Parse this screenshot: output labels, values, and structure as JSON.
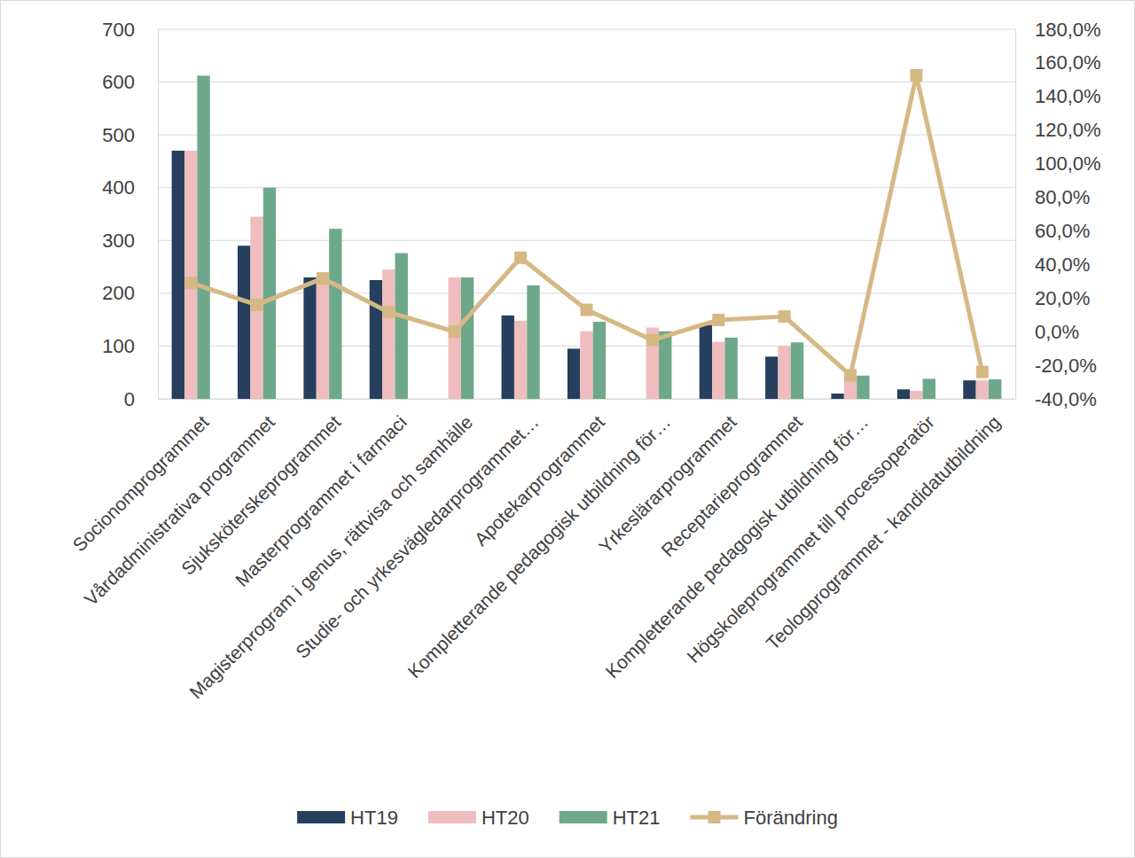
{
  "chart_data": {
    "type": "bar",
    "categories": [
      "Socionomprogrammet",
      "Vårdadministrativa programmet",
      "Sjuksköterskeprogrammet",
      "Masterprogrammet i farmaci",
      "Magisterprogram i genus, rättvisa och samhälle",
      "Studie- och yrkesvägledarprogrammet…",
      "Apotekarprogrammet",
      "Kompletterande pedagogisk utbildning för…",
      "Yrkeslärarprogrammet",
      "Receptarieprogrammet",
      "Kompletterande pedagogisk utbildning för…",
      "Högskoleprogrammet till processoperatör",
      "Teologprogrammet - kandidatutbildning"
    ],
    "series": [
      {
        "name": "HT19",
        "color": "#263f5f",
        "values": [
          470,
          290,
          230,
          225,
          null,
          158,
          95,
          null,
          140,
          80,
          10,
          18,
          35
        ]
      },
      {
        "name": "HT20",
        "color": "#efbdbd",
        "values": [
          470,
          345,
          230,
          245,
          230,
          148,
          128,
          135,
          108,
          100,
          40,
          15,
          35
        ]
      },
      {
        "name": "HT21",
        "color": "#6ea88b",
        "values": [
          612,
          400,
          322,
          276,
          230,
          215,
          146,
          128,
          116,
          107,
          44,
          38,
          37
        ]
      },
      {
        "name": "Förändring",
        "color": "#d6b884",
        "type": "line",
        "axis": "y2",
        "marker": "square",
        "values": [
          29,
          16,
          31.7,
          11.6,
          0,
          44,
          13,
          -5,
          7,
          9,
          -26,
          152.6,
          -24
        ]
      }
    ],
    "ylim": [
      0,
      700
    ],
    "yticks": [
      0,
      100,
      200,
      300,
      400,
      500,
      600,
      700
    ],
    "y2lim": [
      -40,
      180
    ],
    "y2ticks": [
      {
        "value": -40,
        "label": "-40,0%"
      },
      {
        "value": -20,
        "label": "-20,0%"
      },
      {
        "value": 0,
        "label": "0,0%"
      },
      {
        "value": 20,
        "label": "20,0%"
      },
      {
        "value": 40,
        "label": "40,0%"
      },
      {
        "value": 60,
        "label": "60,0%"
      },
      {
        "value": 80,
        "label": "80,0%"
      },
      {
        "value": 100,
        "label": "100,0%"
      },
      {
        "value": 120,
        "label": "120,0%"
      },
      {
        "value": 140,
        "label": "140,0%"
      },
      {
        "value": 160,
        "label": "160,0%"
      },
      {
        "value": 180,
        "label": "180,0%"
      }
    ],
    "grid": true,
    "legend": "bottom"
  }
}
